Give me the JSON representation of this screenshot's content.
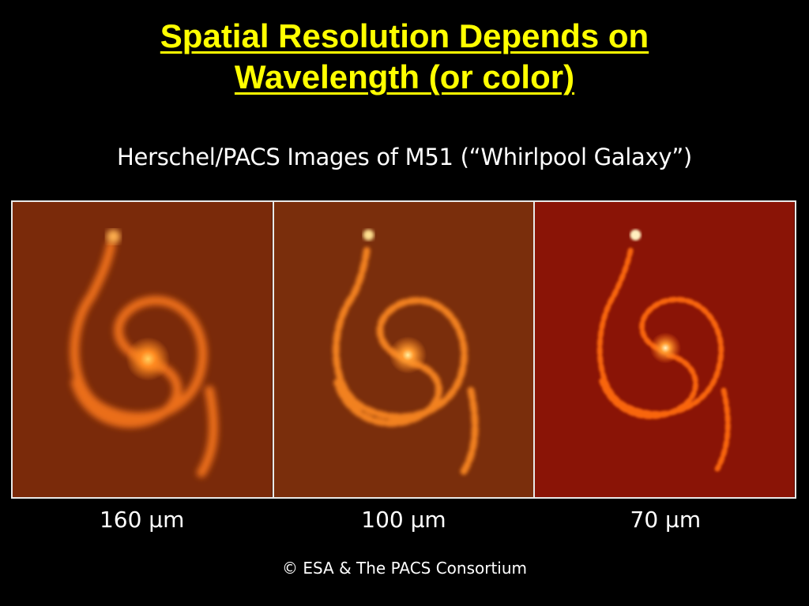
{
  "slide": {
    "title_line1": "Spatial Resolution Depends on",
    "title_line2": "Wavelength (or color)",
    "subtitle": "Herschel/PACS Images of M51 (“Whirlpool Galaxy”)",
    "credit": "© ESA & The PACS Consortium"
  },
  "panels": [
    {
      "label": "160 µm",
      "background": "#7a2a0a",
      "glow": "#ff7a1a"
    },
    {
      "label": "100 µm",
      "background": "#7a2e0c",
      "glow": "#ff8a20"
    },
    {
      "label": "70 µm",
      "background": "#8a1406",
      "glow": "#ff5a10"
    }
  ],
  "colors": {
    "title": "#ffff00",
    "text": "#ffffff",
    "background": "#000000",
    "frame": "#e8e8e8"
  }
}
